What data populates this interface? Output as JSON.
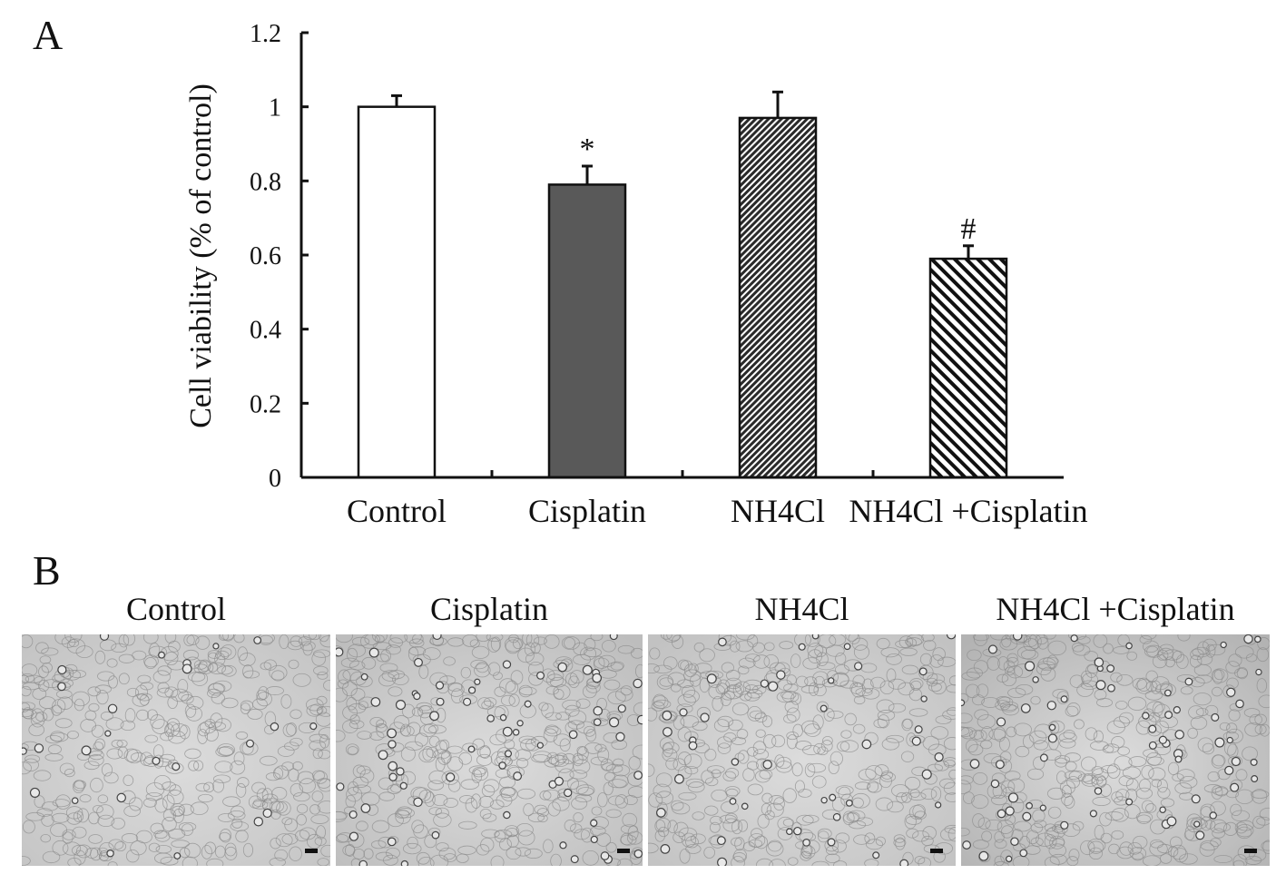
{
  "panels": {
    "a_label": "A",
    "b_label": "B"
  },
  "chart_data": {
    "type": "bar",
    "title": "",
    "xlabel": "",
    "ylabel": "Cell viability (% of control)",
    "ylim": [
      0,
      1.2
    ],
    "yticks": [
      "0",
      "0.2",
      "0.4",
      "0.6",
      "0.8",
      "1",
      "1.2"
    ],
    "ytick_values": [
      0,
      0.2,
      0.4,
      0.6,
      0.8,
      1.0,
      1.2
    ],
    "categories": [
      "Control",
      "Cisplatin",
      "NH4Cl",
      "NH4Cl +Cisplatin"
    ],
    "values": [
      1.0,
      0.79,
      0.97,
      0.59
    ],
    "error": [
      0.03,
      0.05,
      0.07,
      0.035
    ],
    "annotations": [
      "",
      "*",
      "",
      "#"
    ],
    "fills": [
      "white",
      "#595959",
      "hatch-fine",
      "hatch-coarse"
    ],
    "grid": false,
    "legend": "none"
  },
  "micrographs": [
    {
      "title": "Control",
      "tone": "#c4c4c4"
    },
    {
      "title": "Cisplatin",
      "tone": "#bdbdbd"
    },
    {
      "title": "NH4Cl",
      "tone": "#c2c2c2"
    },
    {
      "title": "NH4Cl +Cisplatin",
      "tone": "#b3b3b3"
    }
  ]
}
